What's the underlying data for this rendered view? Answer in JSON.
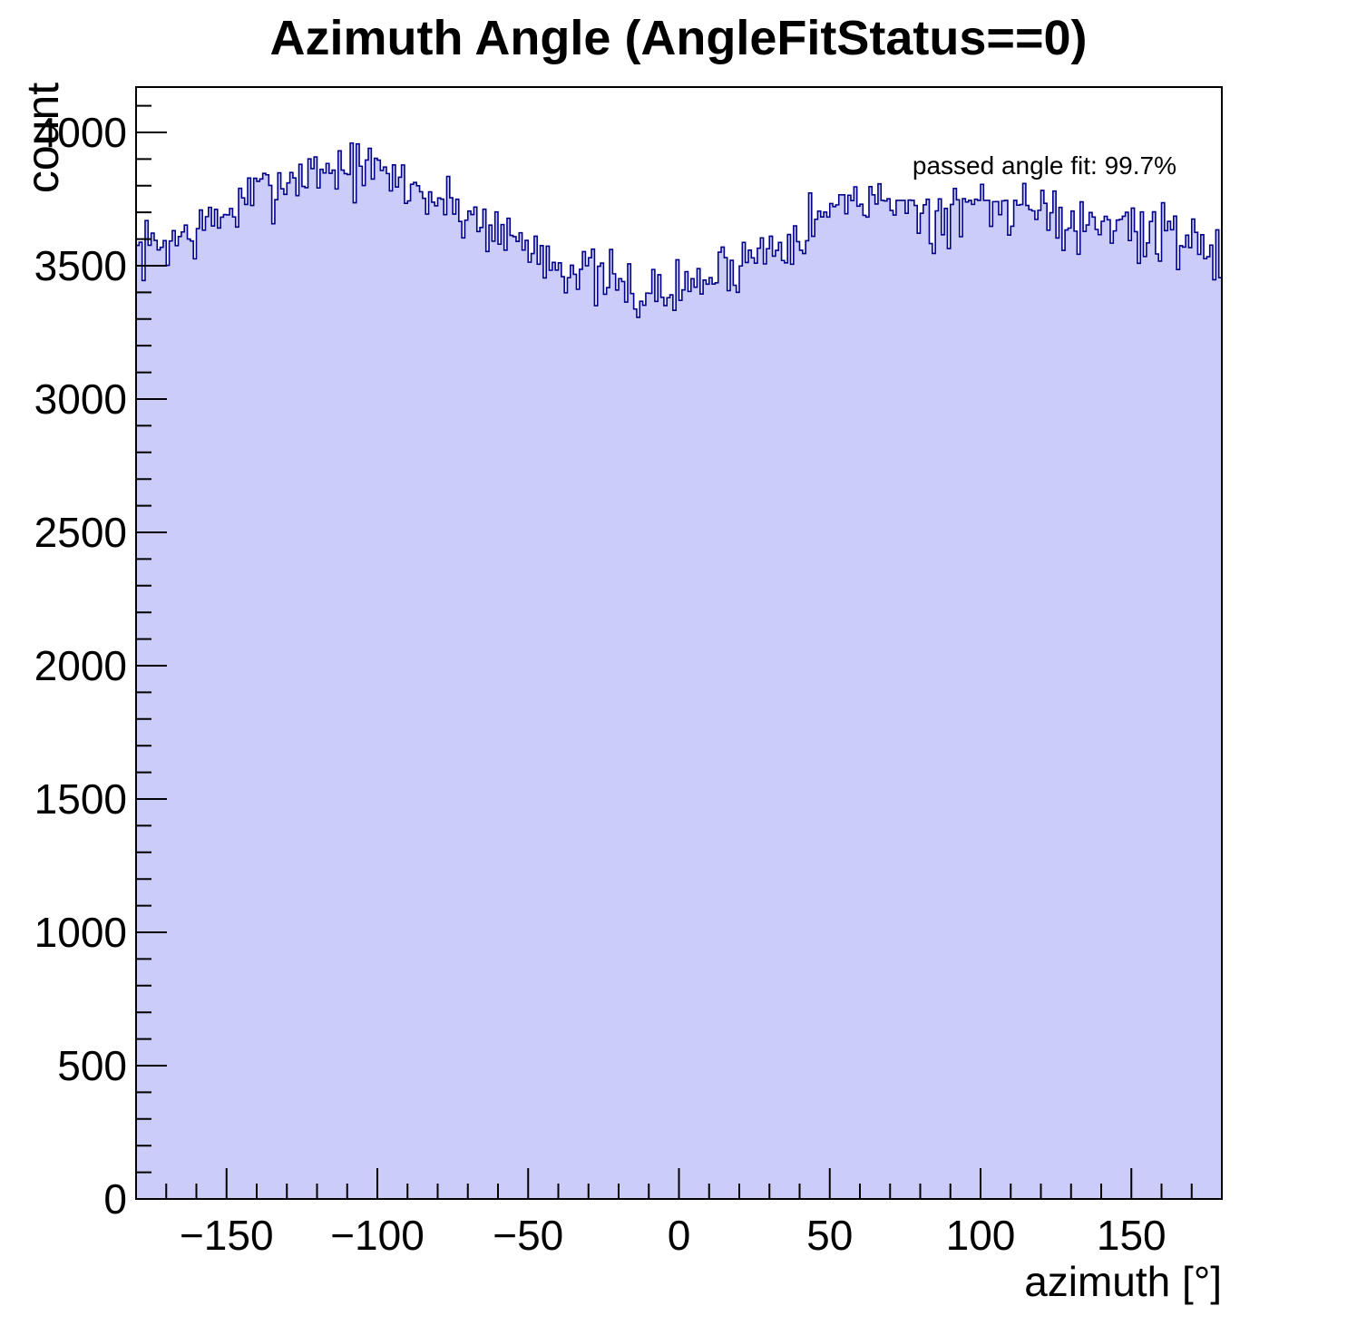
{
  "title": "Azimuth Angle (AngleFitStatus==0)",
  "annotation": "passed angle fit: 99.7%",
  "colors": {
    "histogram_fill": "#ccccf8",
    "histogram_line": "#00008b",
    "frame": "#000000",
    "background": "#ffffff"
  },
  "axes": {
    "x": {
      "title": "azimuth [°]",
      "min": -180,
      "max": 180,
      "major_step": 50,
      "minor_step": 10,
      "ticks": [
        {
          "value": -150,
          "label": "−150"
        },
        {
          "value": -100,
          "label": "−100"
        },
        {
          "value": -50,
          "label": "−50"
        },
        {
          "value": 0,
          "label": "0"
        },
        {
          "value": 50,
          "label": "50"
        },
        {
          "value": 100,
          "label": "100"
        },
        {
          "value": 150,
          "label": "150"
        }
      ]
    },
    "y": {
      "title": "count",
      "min": 0,
      "max": 4170,
      "major_step": 500,
      "minor_step": 100,
      "ticks": [
        {
          "value": 0,
          "label": "0"
        },
        {
          "value": 500,
          "label": "500"
        },
        {
          "value": 1000,
          "label": "1000"
        },
        {
          "value": 1500,
          "label": "1500"
        },
        {
          "value": 2000,
          "label": "2000"
        },
        {
          "value": 2500,
          "label": "2500"
        },
        {
          "value": 3000,
          "label": "3000"
        },
        {
          "value": 3500,
          "label": "3500"
        },
        {
          "value": 4000,
          "label": "4000"
        }
      ]
    }
  },
  "chart_data": {
    "type": "bar",
    "subtype": "histogram-step-filled",
    "title": "Azimuth Angle (AngleFitStatus==0)",
    "xlabel": "azimuth [°]",
    "ylabel": "count",
    "xlim": [
      -180,
      180
    ],
    "ylim": [
      0,
      4170
    ],
    "bin_width_deg": 1,
    "n_bins": 360,
    "grid": false,
    "legend": "none",
    "annotation_text": "passed angle fit: 99.7%",
    "envelope_knots": [
      [
        -180,
        3545
      ],
      [
        -170,
        3590
      ],
      [
        -160,
        3625
      ],
      [
        -150,
        3695
      ],
      [
        -140,
        3765
      ],
      [
        -130,
        3825
      ],
      [
        -120,
        3860
      ],
      [
        -112,
        3872
      ],
      [
        -104,
        3862
      ],
      [
        -95,
        3830
      ],
      [
        -85,
        3775
      ],
      [
        -75,
        3720
      ],
      [
        -65,
        3665
      ],
      [
        -55,
        3605
      ],
      [
        -45,
        3545
      ],
      [
        -35,
        3490
      ],
      [
        -25,
        3440
      ],
      [
        -15,
        3405
      ],
      [
        -7,
        3390
      ],
      [
        0,
        3410
      ],
      [
        10,
        3455
      ],
      [
        20,
        3515
      ],
      [
        30,
        3570
      ],
      [
        40,
        3635
      ],
      [
        50,
        3700
      ],
      [
        58,
        3762
      ],
      [
        66,
        3762
      ],
      [
        67,
        3745
      ],
      [
        114,
        3745
      ],
      [
        122,
        3718
      ],
      [
        132,
        3680
      ],
      [
        142,
        3655
      ],
      [
        152,
        3628
      ],
      [
        162,
        3622
      ],
      [
        172,
        3598
      ],
      [
        180,
        3560
      ]
    ],
    "plateau": {
      "from": 67,
      "to": 114,
      "level": 3745
    },
    "noise_sigma": 55,
    "seed": 7,
    "last_bin_value": 3455,
    "peak_bin_count": 3960,
    "min_bin_count": 3295
  }
}
